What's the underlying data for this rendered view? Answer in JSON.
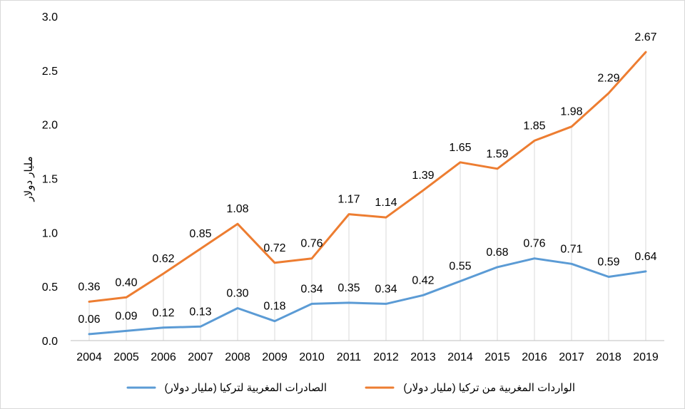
{
  "chart_data": {
    "type": "line",
    "ylabel": "مليار دولار",
    "xlabel": "",
    "ylim": [
      0,
      3.0
    ],
    "y_ticks": [
      "0.0",
      "0.5",
      "1.0",
      "1.5",
      "2.0",
      "2.5",
      "3.0"
    ],
    "categories": [
      "2004",
      "2005",
      "2006",
      "2007",
      "2008",
      "2009",
      "2010",
      "2011",
      "2012",
      "2013",
      "2014",
      "2015",
      "2016",
      "2017",
      "2018",
      "2019"
    ],
    "grid": "vertical drop lines",
    "legend_position": "bottom",
    "series": [
      {
        "name": "الصادرات المغربية لتركيا (مليار دولار)",
        "color": "#5b9bd5",
        "values": [
          0.06,
          0.09,
          0.12,
          0.13,
          0.3,
          0.18,
          0.34,
          0.35,
          0.34,
          0.42,
          0.55,
          0.68,
          0.76,
          0.71,
          0.59,
          0.64
        ],
        "labels": [
          "0.06",
          "0.09",
          "0.12",
          "0.13",
          "0.30",
          "0.18",
          "0.34",
          "0.35",
          "0.34",
          "0.42",
          "0.55",
          "0.68",
          "0.76",
          "0.71",
          "0.59",
          "0.64"
        ]
      },
      {
        "name": "الواردات المغربية من تركيا (مليار دولار)",
        "color": "#ed7d31",
        "values": [
          0.36,
          0.4,
          0.62,
          0.85,
          1.08,
          0.72,
          0.76,
          1.17,
          1.14,
          1.39,
          1.65,
          1.59,
          1.85,
          1.98,
          2.29,
          2.67
        ],
        "labels": [
          "0.36",
          "0.40",
          "0.62",
          "0.85",
          "1.08",
          "0.72",
          "0.76",
          "1.17",
          "1.14",
          "1.39",
          "1.65",
          "1.59",
          "1.85",
          "1.98",
          "2.29",
          "2.67"
        ]
      }
    ]
  }
}
